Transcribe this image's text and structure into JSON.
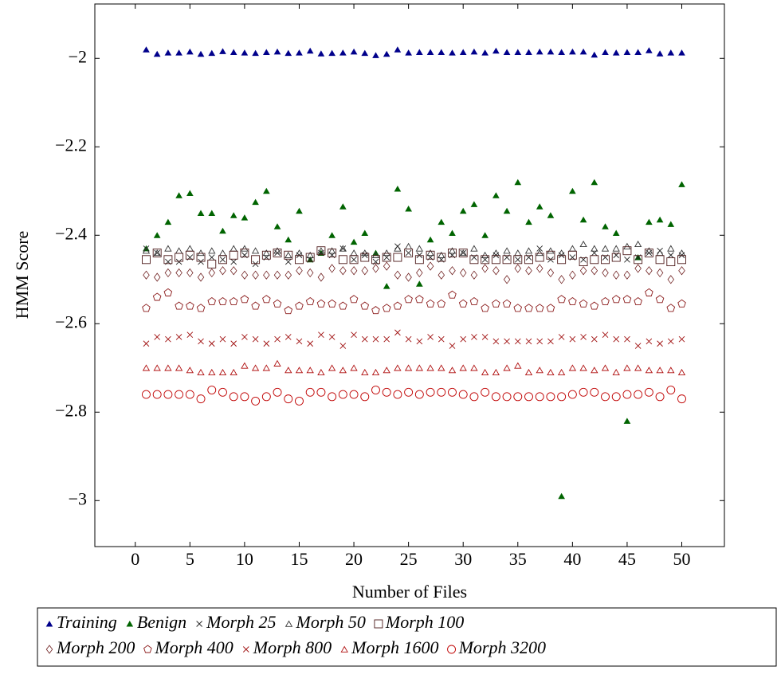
{
  "chart_data": {
    "type": "scatter",
    "x_label": "Number of Files",
    "y_label": "HMM Score",
    "x": [
      1,
      2,
      3,
      4,
      5,
      6,
      7,
      8,
      9,
      10,
      11,
      12,
      13,
      14,
      15,
      16,
      17,
      18,
      19,
      20,
      21,
      22,
      23,
      24,
      25,
      26,
      27,
      28,
      29,
      30,
      31,
      32,
      33,
      34,
      35,
      36,
      37,
      38,
      39,
      40,
      41,
      42,
      43,
      44,
      45,
      46,
      47,
      48,
      49,
      50
    ],
    "xlim": [
      -3.7,
      53.9
    ],
    "xticks": [
      0,
      5,
      10,
      15,
      20,
      25,
      30,
      35,
      40,
      45,
      50
    ],
    "ylim": [
      -3.104,
      -1.877
    ],
    "yticks": [
      {
        "value": -3,
        "label": "−3"
      },
      {
        "value": -2.8,
        "label": "−2.8"
      },
      {
        "value": -2.6,
        "label": "−2.6"
      },
      {
        "value": -2.4,
        "label": "−2.4"
      },
      {
        "value": -2.2,
        "label": "−2.2"
      },
      {
        "value": -2,
        "label": "−2"
      }
    ],
    "legend": "bottom",
    "series": [
      {
        "name": "Training",
        "color": "#00008b",
        "marker": "triangle",
        "values": [
          -1.98,
          -1.99,
          -1.987,
          -1.987,
          -1.985,
          -1.99,
          -1.988,
          -1.984,
          -1.986,
          -1.987,
          -1.988,
          -1.986,
          -1.985,
          -1.988,
          -1.987,
          -1.983,
          -1.989,
          -1.988,
          -1.987,
          -1.985,
          -1.988,
          -1.993,
          -1.99,
          -1.98,
          -1.987,
          -1.986,
          -1.986,
          -1.986,
          -1.987,
          -1.986,
          -1.985,
          -1.987,
          -1.983,
          -1.986,
          -1.986,
          -1.986,
          -1.985,
          -1.985,
          -1.986,
          -1.985,
          -1.985,
          -1.992,
          -1.986,
          -1.987,
          -1.986,
          -1.986,
          -1.982,
          -1.989,
          -1.987,
          -1.987
        ]
      },
      {
        "name": "Benign",
        "color": "#006400",
        "marker": "triangle",
        "values": [
          -2.43,
          -2.4,
          -2.37,
          -2.31,
          -2.305,
          -2.35,
          -2.35,
          -2.39,
          -2.355,
          -2.36,
          -2.325,
          -2.3,
          -2.38,
          -2.41,
          -2.345,
          -2.455,
          -2.44,
          -2.4,
          -2.335,
          -2.415,
          -2.395,
          -2.44,
          -2.515,
          -2.295,
          -2.34,
          -2.51,
          -2.41,
          -2.37,
          -2.395,
          -2.345,
          -2.33,
          -2.4,
          -2.31,
          -2.345,
          -2.28,
          -2.37,
          -2.335,
          -2.355,
          -2.99,
          -2.3,
          -2.365,
          -2.28,
          -2.38,
          -2.395,
          -2.82,
          -2.45,
          -2.37,
          -2.365,
          -2.375,
          -2.285
        ]
      },
      {
        "name": "Morph 25",
        "color": "#222222",
        "marker": "x",
        "values": [
          -2.43,
          -2.44,
          -2.46,
          -2.46,
          -2.45,
          -2.46,
          -2.45,
          -2.455,
          -2.46,
          -2.445,
          -2.465,
          -2.45,
          -2.44,
          -2.46,
          -2.445,
          -2.455,
          -2.44,
          -2.445,
          -2.43,
          -2.455,
          -2.445,
          -2.46,
          -2.45,
          -2.425,
          -2.44,
          -2.445,
          -2.45,
          -2.455,
          -2.445,
          -2.44,
          -2.45,
          -2.455,
          -2.445,
          -2.45,
          -2.455,
          -2.45,
          -2.43,
          -2.455,
          -2.445,
          -2.45,
          -2.455,
          -2.44,
          -2.45,
          -2.445,
          -2.455,
          -2.45,
          -2.44,
          -2.435,
          -2.445,
          -2.445
        ]
      },
      {
        "name": "Morph 50",
        "color": "#333333",
        "marker": "triangle-open",
        "values": [
          -2.435,
          -2.44,
          -2.43,
          -2.435,
          -2.43,
          -2.44,
          -2.435,
          -2.44,
          -2.43,
          -2.43,
          -2.435,
          -2.44,
          -2.435,
          -2.445,
          -2.44,
          -2.445,
          -2.435,
          -2.435,
          -2.43,
          -2.44,
          -2.44,
          -2.445,
          -2.44,
          -2.43,
          -2.425,
          -2.43,
          -2.44,
          -2.445,
          -2.435,
          -2.44,
          -2.43,
          -2.445,
          -2.44,
          -2.435,
          -2.44,
          -2.435,
          -2.44,
          -2.435,
          -2.44,
          -2.43,
          -2.42,
          -2.43,
          -2.43,
          -2.43,
          -2.425,
          -2.42,
          -2.435,
          -2.44,
          -2.43,
          -2.44
        ]
      },
      {
        "name": "Morph 100",
        "color": "#4d1a1a",
        "marker": "square-open",
        "values": [
          -2.455,
          -2.44,
          -2.455,
          -2.45,
          -2.445,
          -2.45,
          -2.465,
          -2.455,
          -2.445,
          -2.44,
          -2.455,
          -2.445,
          -2.44,
          -2.445,
          -2.455,
          -2.45,
          -2.435,
          -2.44,
          -2.455,
          -2.455,
          -2.45,
          -2.455,
          -2.45,
          -2.45,
          -2.44,
          -2.455,
          -2.445,
          -2.45,
          -2.44,
          -2.44,
          -2.455,
          -2.455,
          -2.455,
          -2.455,
          -2.455,
          -2.455,
          -2.45,
          -2.445,
          -2.455,
          -2.445,
          -2.46,
          -2.455,
          -2.455,
          -2.45,
          -2.435,
          -2.455,
          -2.44,
          -2.455,
          -2.46,
          -2.455
        ]
      },
      {
        "name": "Morph 200",
        "color": "#6b1a1a",
        "marker": "diamond-open",
        "values": [
          -2.49,
          -2.495,
          -2.485,
          -2.485,
          -2.485,
          -2.495,
          -2.485,
          -2.48,
          -2.48,
          -2.49,
          -2.49,
          -2.49,
          -2.49,
          -2.49,
          -2.48,
          -2.485,
          -2.495,
          -2.475,
          -2.48,
          -2.48,
          -2.48,
          -2.475,
          -2.47,
          -2.49,
          -2.495,
          -2.485,
          -2.47,
          -2.49,
          -2.48,
          -2.485,
          -2.49,
          -2.475,
          -2.48,
          -2.5,
          -2.475,
          -2.48,
          -2.475,
          -2.485,
          -2.5,
          -2.49,
          -2.48,
          -2.48,
          -2.485,
          -2.49,
          -2.49,
          -2.475,
          -2.48,
          -2.485,
          -2.5,
          -2.48
        ]
      },
      {
        "name": "Morph 400",
        "color": "#8b1a1a",
        "marker": "pentagon-open",
        "values": [
          -2.565,
          -2.54,
          -2.53,
          -2.56,
          -2.56,
          -2.565,
          -2.55,
          -2.55,
          -2.55,
          -2.545,
          -2.56,
          -2.545,
          -2.555,
          -2.57,
          -2.56,
          -2.55,
          -2.555,
          -2.555,
          -2.56,
          -2.545,
          -2.56,
          -2.57,
          -2.565,
          -2.56,
          -2.545,
          -2.545,
          -2.555,
          -2.555,
          -2.535,
          -2.555,
          -2.55,
          -2.565,
          -2.555,
          -2.555,
          -2.565,
          -2.565,
          -2.565,
          -2.565,
          -2.545,
          -2.55,
          -2.555,
          -2.56,
          -2.55,
          -2.545,
          -2.545,
          -2.55,
          -2.53,
          -2.545,
          -2.565,
          -2.555
        ]
      },
      {
        "name": "Morph 800",
        "color": "#a01010",
        "marker": "x",
        "values": [
          -2.645,
          -2.63,
          -2.635,
          -2.63,
          -2.625,
          -2.64,
          -2.645,
          -2.635,
          -2.645,
          -2.63,
          -2.635,
          -2.645,
          -2.635,
          -2.63,
          -2.64,
          -2.645,
          -2.625,
          -2.63,
          -2.65,
          -2.625,
          -2.635,
          -2.635,
          -2.635,
          -2.62,
          -2.635,
          -2.64,
          -2.63,
          -2.635,
          -2.65,
          -2.635,
          -2.63,
          -2.63,
          -2.64,
          -2.64,
          -2.64,
          -2.64,
          -2.64,
          -2.64,
          -2.63,
          -2.635,
          -2.63,
          -2.635,
          -2.625,
          -2.635,
          -2.635,
          -2.65,
          -2.64,
          -2.645,
          -2.64,
          -2.635
        ]
      },
      {
        "name": "Morph 1600",
        "color": "#b01010",
        "marker": "triangle-open",
        "values": [
          -2.7,
          -2.7,
          -2.7,
          -2.7,
          -2.705,
          -2.71,
          -2.71,
          -2.71,
          -2.71,
          -2.695,
          -2.7,
          -2.7,
          -2.69,
          -2.705,
          -2.705,
          -2.705,
          -2.71,
          -2.7,
          -2.705,
          -2.7,
          -2.71,
          -2.71,
          -2.705,
          -2.7,
          -2.7,
          -2.7,
          -2.7,
          -2.7,
          -2.705,
          -2.7,
          -2.7,
          -2.71,
          -2.71,
          -2.7,
          -2.695,
          -2.71,
          -2.705,
          -2.71,
          -2.71,
          -2.7,
          -2.7,
          -2.705,
          -2.7,
          -2.71,
          -2.7,
          -2.7,
          -2.705,
          -2.705,
          -2.705,
          -2.71
        ]
      },
      {
        "name": "Morph 3200",
        "color": "#c00000",
        "marker": "circle-open",
        "values": [
          -2.76,
          -2.76,
          -2.76,
          -2.76,
          -2.76,
          -2.77,
          -2.75,
          -2.755,
          -2.765,
          -2.765,
          -2.775,
          -2.765,
          -2.755,
          -2.77,
          -2.775,
          -2.755,
          -2.755,
          -2.765,
          -2.76,
          -2.76,
          -2.765,
          -2.75,
          -2.755,
          -2.76,
          -2.755,
          -2.76,
          -2.755,
          -2.755,
          -2.755,
          -2.76,
          -2.765,
          -2.755,
          -2.765,
          -2.765,
          -2.765,
          -2.765,
          -2.765,
          -2.765,
          -2.765,
          -2.76,
          -2.755,
          -2.755,
          -2.765,
          -2.765,
          -2.76,
          -2.76,
          -2.755,
          -2.765,
          -2.75,
          -2.77
        ]
      }
    ]
  }
}
